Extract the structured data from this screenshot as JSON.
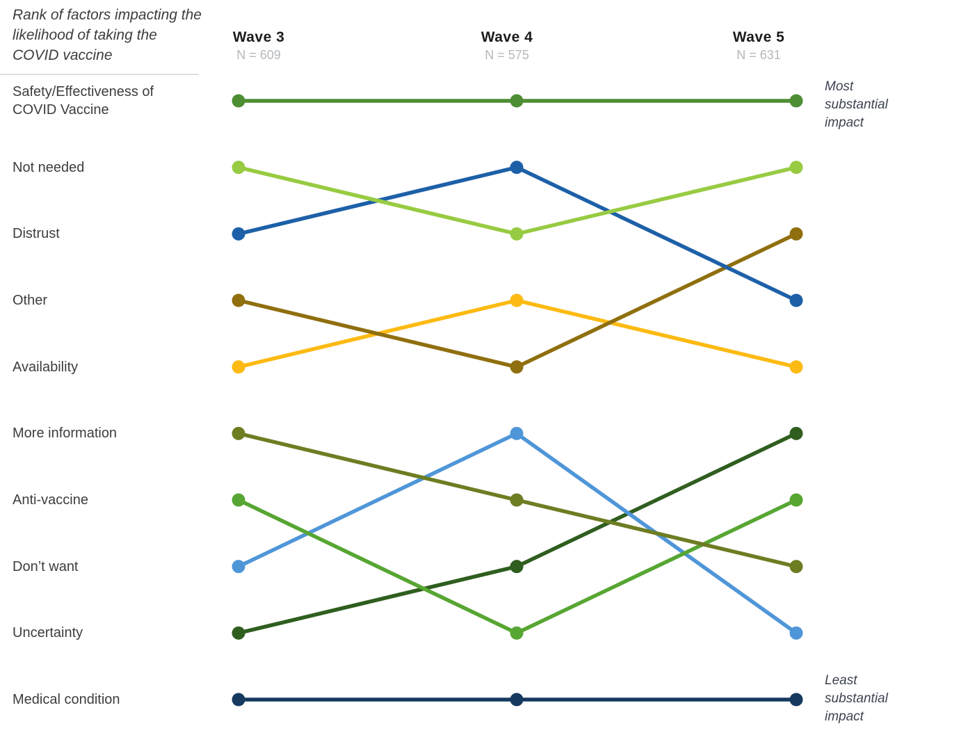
{
  "title": "Rank of factors impacting the likelihood of taking the COVID vaccine",
  "annotations": {
    "top": "Most substantial impact",
    "bottom": "Least substantial impact"
  },
  "chart_data": {
    "type": "line",
    "subtype": "bump-rank-chart",
    "title": "Rank of factors impacting the likelihood of taking the COVID vaccine",
    "rank_axis": {
      "min": 1,
      "max": 10,
      "top_meaning": "Most substantial impact",
      "bottom_meaning": "Least substantial impact",
      "grid": false,
      "legend": "none (direct row labels at left)"
    },
    "waves": [
      {
        "label": "Wave 3",
        "n": "N = 609"
      },
      {
        "label": "Wave 4",
        "n": "N = 575"
      },
      {
        "label": "Wave 5",
        "n": "N = 631"
      }
    ],
    "categories": [
      "Wave 3",
      "Wave 4",
      "Wave 5"
    ],
    "series": [
      {
        "name": "Safety/Effectiveness of COVID Vaccine",
        "color": "#4e8e33",
        "ranks": [
          1,
          1,
          1
        ]
      },
      {
        "name": "Not needed",
        "color": "#97cb42",
        "ranks": [
          2,
          3,
          2
        ]
      },
      {
        "name": "Distrust",
        "color": "#1d60a8",
        "ranks": [
          3,
          2,
          4
        ]
      },
      {
        "name": "Other",
        "color": "#8f6f0e",
        "ranks": [
          4,
          5,
          3
        ]
      },
      {
        "name": "Availability",
        "color": "#fcba12",
        "ranks": [
          5,
          4,
          5
        ]
      },
      {
        "name": "More information",
        "color": "#6d7d22",
        "ranks": [
          6,
          7,
          8
        ]
      },
      {
        "name": "Anti-vaccine",
        "color": "#57a633",
        "ranks": [
          7,
          9,
          7
        ]
      },
      {
        "name": "Don’t want",
        "color": "#4f96d8",
        "ranks": [
          8,
          6,
          9
        ]
      },
      {
        "name": "Uncertainty",
        "color": "#2f5e1f",
        "ranks": [
          9,
          8,
          6
        ]
      },
      {
        "name": "Medical condition",
        "color": "#15395f",
        "ranks": [
          10,
          10,
          10
        ]
      }
    ]
  }
}
